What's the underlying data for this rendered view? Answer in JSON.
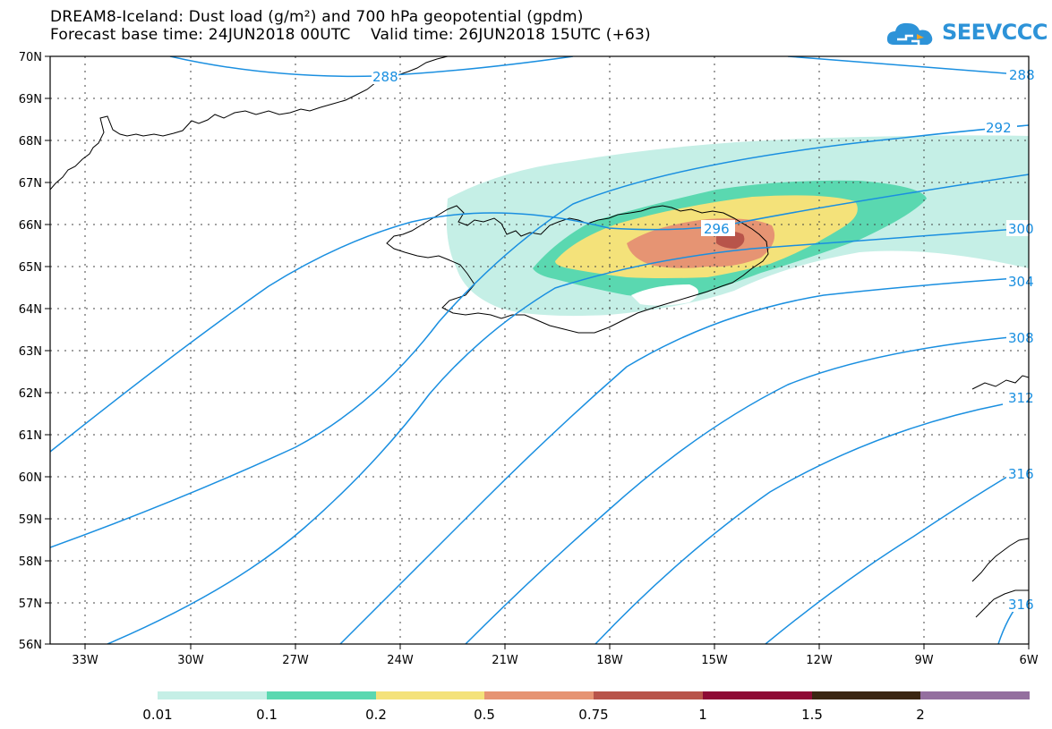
{
  "title": {
    "line1": "DREAM8-Iceland: Dust load (g/m²) and 700 hPa geopotential (gpdm)",
    "line2": "Forecast base time: 24JUN2018 00UTC    Valid time: 26JUN2018 15UTC (+63)"
  },
  "logo": {
    "text": "SEEVCCC",
    "icon": "cloud-icon",
    "color": "#2d93d8"
  },
  "map": {
    "lat_labels": [
      "70N",
      "69N",
      "68N",
      "67N",
      "66N",
      "65N",
      "64N",
      "63N",
      "62N",
      "61N",
      "60N",
      "59N",
      "58N",
      "57N",
      "56N"
    ],
    "lon_labels": [
      "33W",
      "30W",
      "27W",
      "24W",
      "21W",
      "18W",
      "15W",
      "12W",
      "9W",
      "6W"
    ],
    "lat_range": [
      56,
      70
    ],
    "lon_range": [
      -34.5,
      -6
    ],
    "grid": "dotted",
    "contour_color": "#1a8fe0",
    "contour_labels": [
      "288",
      "288",
      "292",
      "296",
      "300",
      "304",
      "308",
      "312",
      "316",
      "316"
    ]
  },
  "colorbar": {
    "colors": [
      "#c5efe6",
      "#5ad8b0",
      "#f4e27a",
      "#e69473",
      "#b8544a",
      "#8e0a35",
      "#3b2612",
      "#946f9f"
    ],
    "labels": [
      "0.01",
      "0.1",
      "0.2",
      "0.5",
      "0.75",
      "1",
      "1.5",
      "2"
    ]
  }
}
